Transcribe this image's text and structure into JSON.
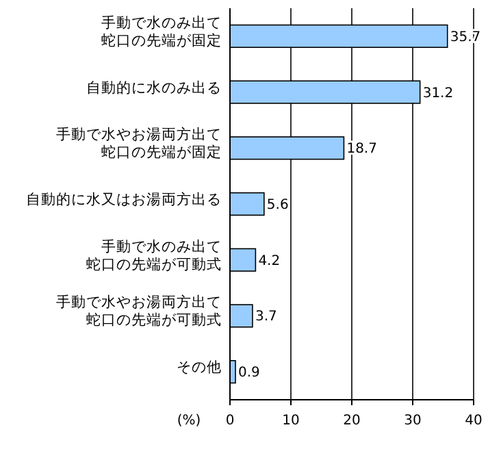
{
  "chart_data": {
    "type": "bar",
    "orientation": "horizontal",
    "xlabel": "(%)",
    "categories": [
      "手動で水のみ出て蛇口の先端が固定",
      "自動的に水のみ出る",
      "手動で水やお湯両方出て蛇口の先端が固定",
      "自動的に水又はお湯両方出る",
      "手動で水のみ出て蛇口の先端が可動式",
      "手動で水やお湯両方出て蛇口の先端が可動式",
      "その他"
    ],
    "values": [
      35.7,
      31.2,
      18.7,
      5.6,
      4.2,
      3.7,
      0.9
    ],
    "color": "#99ccff",
    "xlim": [
      0,
      40
    ],
    "xticks": [
      0,
      10,
      20,
      30,
      40
    ],
    "grid": "x",
    "data_labels": true
  }
}
